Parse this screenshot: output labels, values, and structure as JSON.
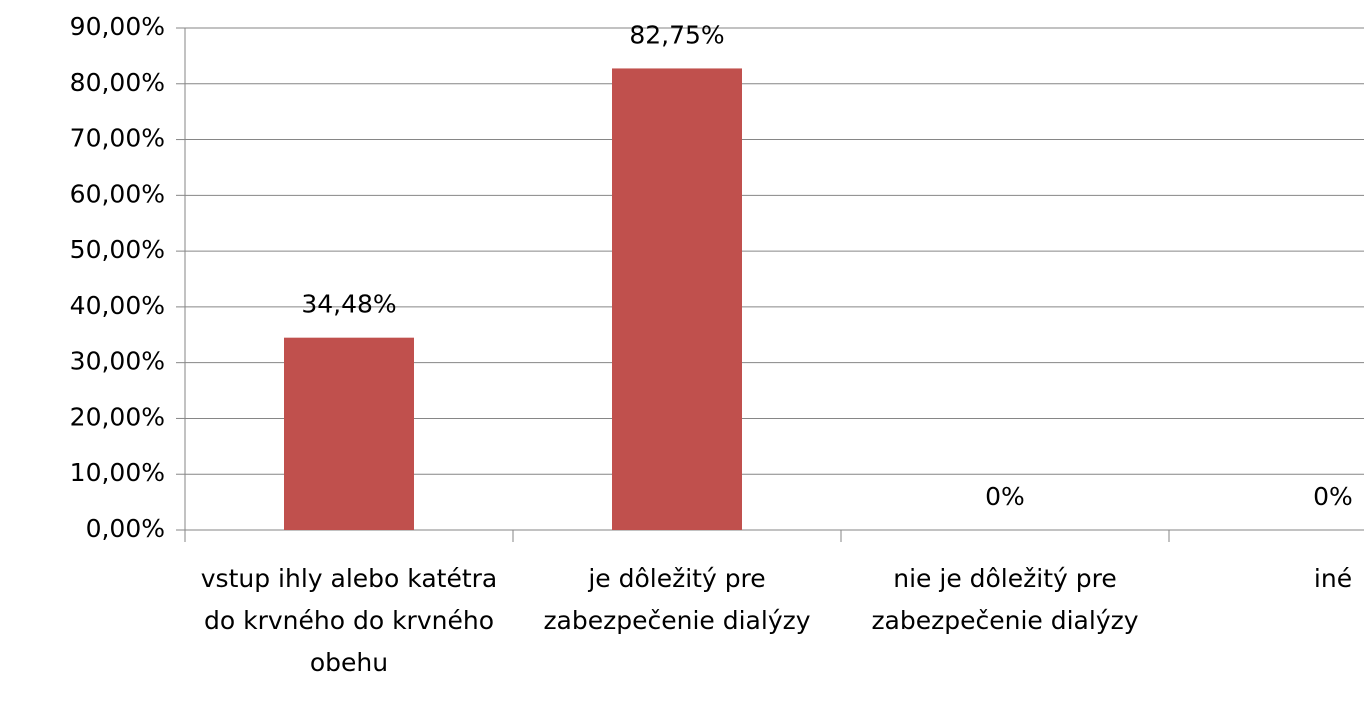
{
  "chart_data": {
    "type": "bar",
    "categories": [
      "vstup ihly alebo katétra do krvného do krvného obehu",
      "je dôležitý pre zabezpečenie dialýzy",
      "nie je dôležitý pre zabezpečenie dialýzy",
      "iné"
    ],
    "values": [
      34.48,
      82.75,
      0,
      0
    ],
    "value_labels": [
      "34,48%",
      "82,75%",
      "0%",
      "0%"
    ],
    "color": "#c0504d",
    "ylim": [
      0,
      90
    ],
    "yticks": [
      {
        "value": 0,
        "label": "0,00%"
      },
      {
        "value": 10,
        "label": "10,00%"
      },
      {
        "value": 20,
        "label": "20,00%"
      },
      {
        "value": 30,
        "label": "30,00%"
      },
      {
        "value": 40,
        "label": "40,00%"
      },
      {
        "value": 50,
        "label": "50,00%"
      },
      {
        "value": 60,
        "label": "60,00%"
      },
      {
        "value": 70,
        "label": "70,00%"
      },
      {
        "value": 80,
        "label": "80,00%"
      },
      {
        "value": 90,
        "label": "90,00%"
      }
    ],
    "grid": true
  }
}
